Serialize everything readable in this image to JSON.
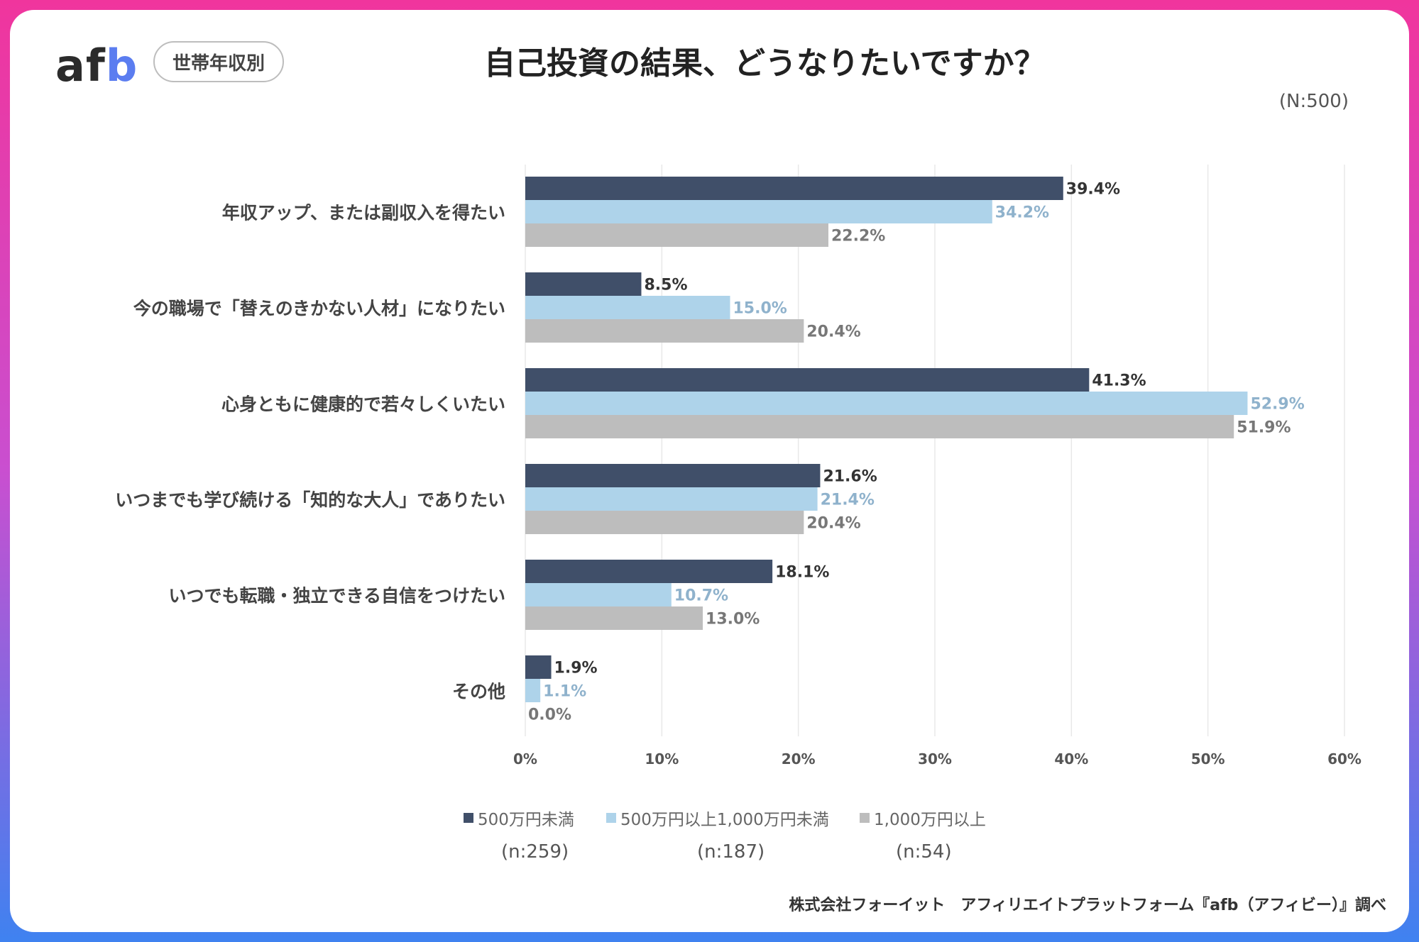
{
  "header": {
    "logo_a": "af",
    "logo_b": "b",
    "tag": "世帯年収別",
    "title": "自己投資の結果、どうなりたいですか？",
    "n_total": "(N:500)"
  },
  "colors": {
    "series1": "#404f69",
    "series2": "#aed3ea",
    "series3": "#bdbdbd",
    "label1": "#333333",
    "label2": "#8fb2cc",
    "label3": "#777777"
  },
  "chart_data": {
    "type": "bar",
    "orientation": "horizontal",
    "categories": [
      "年収アップ、または副収入を得たい",
      "今の職場で「替えのきかない人材」になりたい",
      "心身ともに健康的で若々しくいたい",
      "いつまでも学び続ける「知的な大人」でありたい",
      "いつでも転職・独立できる自信をつけたい",
      "その他"
    ],
    "series": [
      {
        "name": "500万円未満",
        "n": "(n:259)",
        "values": [
          39.4,
          8.5,
          41.3,
          21.6,
          18.1,
          1.9
        ],
        "labels": [
          "39.4%",
          "8.5%",
          "41.3%",
          "21.6%",
          "18.1%",
          "1.9%"
        ]
      },
      {
        "name": "500万円以上1,000万円未満",
        "n": "(n:187)",
        "values": [
          34.2,
          15.0,
          52.9,
          21.4,
          10.7,
          1.1
        ],
        "labels": [
          "34.2%",
          "15.0%",
          "52.9%",
          "21.4%",
          "10.7%",
          "1.1%"
        ]
      },
      {
        "name": "1,000万円以上",
        "n": "(n:54)",
        "values": [
          22.2,
          20.4,
          51.9,
          20.4,
          13.0,
          0.0
        ],
        "labels": [
          "22.2%",
          "20.4%",
          "51.9%",
          "20.4%",
          "13.0%",
          "0.0%"
        ]
      }
    ],
    "xlim": [
      0,
      60
    ],
    "xticks": [
      "0%",
      "10%",
      "20%",
      "30%",
      "40%",
      "50%",
      "60%"
    ],
    "grid": true,
    "legend_position": "bottom"
  },
  "footer": {
    "credit": "株式会社フォーイット　アフィリエイトプラットフォーム『afb（アフィビー）』調べ"
  }
}
